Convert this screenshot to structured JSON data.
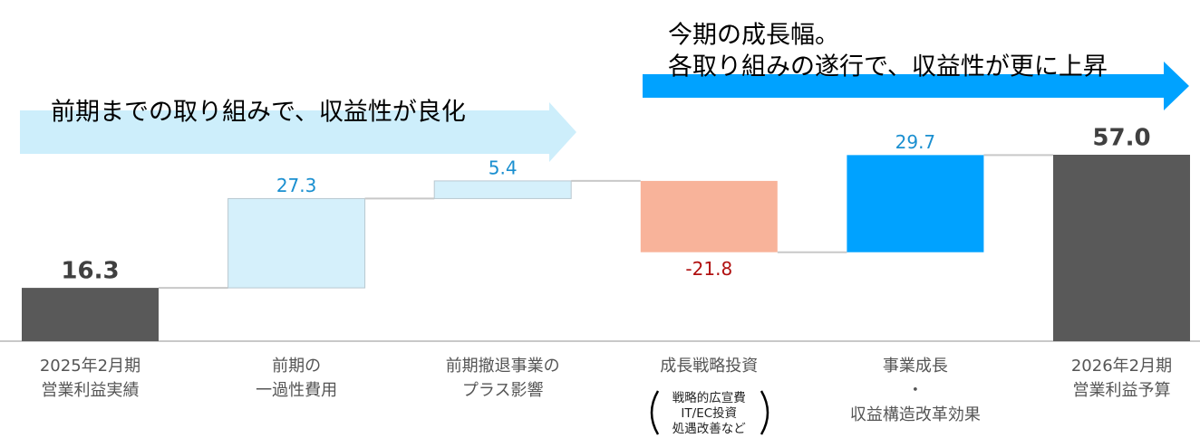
{
  "chart_data": {
    "type": "waterfall",
    "categories": [
      [
        "2025年2月期",
        "営業利益実績"
      ],
      [
        "前期の",
        "一過性費用"
      ],
      [
        "前期撤退事業の",
        "プラス影響"
      ],
      [
        "成長戦略投資"
      ],
      [
        "事業成長",
        "・",
        "収益構造改革効果"
      ],
      [
        "2026年2月期",
        "営業利益予算"
      ]
    ],
    "category_notes": [
      null,
      null,
      null,
      [
        "戦略的広宣費",
        "IT/EC投資",
        "処遇改善など"
      ],
      null,
      null
    ],
    "values": [
      16.3,
      27.3,
      5.4,
      -21.8,
      29.7,
      57.0
    ],
    "value_labels": [
      "16.3",
      "27.3",
      "5.4",
      "-21.8",
      "29.7",
      "57.0"
    ],
    "measure": [
      "absolute",
      "relative",
      "relative",
      "relative",
      "relative",
      "total"
    ],
    "colors": [
      "#595959",
      "#d5f0fb",
      "#d5f0fb",
      "#f8b39a",
      "#00a2ff",
      "#595959"
    ],
    "label_colors": [
      "#404040",
      "#1a8fd0",
      "#1a8fd0",
      "#b01010",
      "#1a8fd0",
      "#404040"
    ],
    "annotations": {
      "previous": {
        "text": "前期までの取り組みで、収益性が良化",
        "color": "#cdeefb"
      },
      "current": {
        "lines": [
          "今期の成長幅。",
          "各取り組みの遂行で、収益性が更に上昇"
        ],
        "color": "#00a2ff"
      }
    }
  }
}
